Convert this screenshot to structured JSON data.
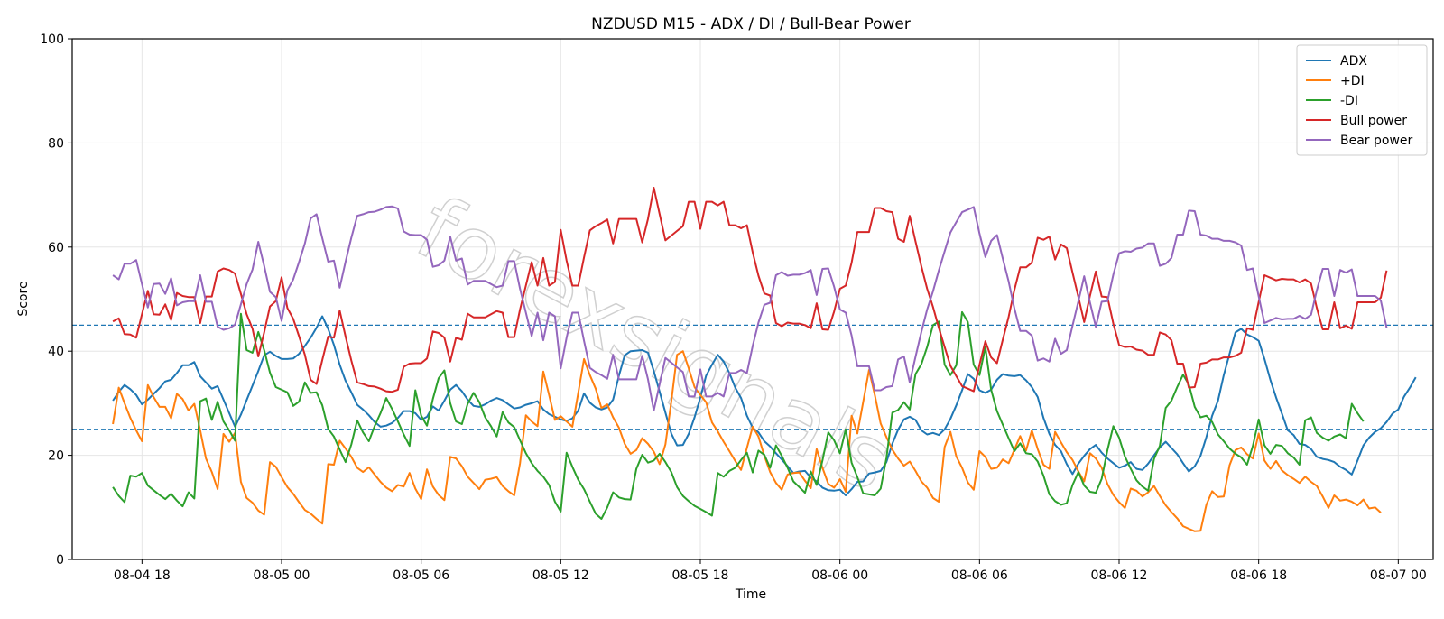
{
  "watermark": "forexsignals",
  "chart_data": {
    "type": "line",
    "title": "NZDUSD M15 - ADX / DI / Bull-Bear Power",
    "xlabel": "Time",
    "ylabel": "Score",
    "ylim": [
      0,
      100
    ],
    "yticks": [
      0,
      20,
      40,
      60,
      80,
      100
    ],
    "xticks": [
      "08-04 18",
      "08-05 00",
      "08-05 06",
      "08-05 12",
      "08-05 18",
      "08-06 00",
      "08-06 06",
      "08-06 12",
      "08-06 18",
      "08-07 00"
    ],
    "x_range": [
      "08-04 15:00",
      "08-07 01:30"
    ],
    "x_start": "08-04 16:45",
    "x_step_minutes": 15,
    "grid": true,
    "legend_position": "top-right",
    "hlines": [
      {
        "y": 45,
        "color": "#1f77b4",
        "style": "dashed"
      },
      {
        "y": 25,
        "color": "#1f77b4",
        "style": "dashed"
      }
    ],
    "series": [
      {
        "name": "ADX",
        "color": "#1f77b4",
        "values": [
          30.5,
          32.2,
          33.5,
          32.7,
          31.6,
          29.8,
          30.7,
          31.8,
          32.9,
          34.2,
          34.5,
          35.8,
          37.3,
          37.3,
          37.9,
          35.2,
          34.0,
          32.8,
          33.3,
          30.7,
          28.1,
          25.5,
          27.8,
          30.6,
          33.4,
          36.2,
          39.2,
          39.9,
          39.1,
          38.5,
          38.5,
          38.6,
          39.5,
          41.0,
          42.6,
          44.5,
          46.7,
          44.3,
          41.2,
          37.4,
          34.3,
          32.1,
          29.7,
          28.8,
          27.7,
          26.4,
          25.5,
          25.7,
          26.2,
          27.2,
          28.5,
          28.5,
          28.1,
          26.8,
          27.4,
          29.4,
          28.6,
          30.5,
          32.6,
          33.5,
          32.3,
          30.7,
          29.5,
          29.3,
          29.8,
          30.5,
          31.0,
          30.6,
          29.8,
          29.0,
          29.2,
          29.7,
          30.0,
          30.4,
          28.8,
          27.9,
          27.4,
          26.9,
          26.6,
          27.1,
          28.6,
          31.9,
          30.1,
          29.2,
          28.8,
          29.2,
          30.7,
          35.3,
          39.2,
          40.0,
          40.1,
          40.2,
          39.7,
          36.2,
          32.2,
          28.2,
          24.2,
          21.9,
          22.0,
          24.1,
          27.3,
          31.1,
          35.3,
          37.4,
          39.3,
          38.0,
          35.8,
          33.0,
          31.0,
          27.6,
          25.3,
          24.4,
          22.7,
          21.7,
          20.4,
          19.2,
          17.9,
          16.6,
          16.9,
          17.0,
          15.7,
          15.0,
          13.8,
          13.3,
          13.2,
          13.4,
          12.3,
          13.5,
          14.9,
          15.0,
          16.5,
          16.7,
          17.0,
          18.7,
          22.2,
          24.9,
          26.9,
          27.4,
          26.8,
          24.8,
          24.0,
          24.3,
          23.9,
          25.0,
          27.0,
          29.6,
          32.5,
          35.6,
          34.7,
          32.5,
          32.0,
          32.6,
          34.5,
          35.6,
          35.3,
          35.2,
          35.4,
          34.4,
          33.1,
          31.2,
          27.2,
          24.1,
          22.0,
          20.8,
          18.3,
          16.4,
          18.4,
          19.9,
          21.2,
          22.0,
          20.5,
          19.4,
          18.5,
          17.6,
          18.0,
          18.7,
          17.4,
          17.2,
          18.4,
          20.0,
          21.5,
          22.6,
          21.4,
          20.2,
          18.5,
          16.9,
          17.9,
          19.9,
          23.5,
          27.6,
          30.5,
          35.4,
          39.5,
          43.6,
          44.3,
          43.2,
          42.7,
          42.0,
          38.5,
          34.5,
          31.1,
          28.0,
          24.8,
          23.9,
          22.2,
          22.0,
          21.2,
          19.7,
          19.3,
          19.1,
          18.7,
          17.8,
          17.2,
          16.3,
          19.0,
          21.9,
          23.4,
          24.5,
          25.2,
          26.4,
          28.0,
          28.8,
          31.3,
          33.0,
          35.0
        ]
      },
      {
        "name": "+DI",
        "color": "#ff7f0e",
        "values": [
          26.0,
          33.0,
          30.0,
          27.2,
          24.8,
          22.7,
          33.5,
          31.2,
          29.3,
          29.3,
          27.1,
          31.8,
          30.8,
          28.6,
          29.9,
          24.8,
          19.4,
          16.8,
          13.5,
          24.1,
          22.6,
          24.3,
          14.9,
          11.8,
          10.9,
          9.4,
          8.6,
          18.7,
          17.8,
          15.8,
          13.9,
          12.6,
          11.0,
          9.5,
          8.8,
          7.8,
          6.9,
          18.3,
          18.2,
          22.8,
          21.3,
          19.7,
          17.6,
          16.8,
          17.7,
          16.3,
          14.9,
          13.8,
          13.1,
          14.3,
          14.0,
          16.6,
          13.6,
          11.6,
          17.3,
          14.0,
          12.4,
          11.4,
          19.7,
          19.4,
          17.9,
          15.9,
          14.7,
          13.5,
          15.3,
          15.5,
          15.8,
          14.1,
          13.1,
          12.3,
          18.5,
          27.7,
          26.5,
          25.6,
          36.1,
          31.6,
          26.8,
          27.5,
          26.5,
          25.5,
          32.0,
          38.5,
          35.4,
          32.8,
          29.1,
          29.8,
          27.3,
          25.3,
          22.2,
          20.3,
          21.0,
          23.3,
          22.2,
          20.7,
          18.3,
          22.1,
          30.3,
          39.3,
          40.0,
          36.7,
          33.1,
          31.6,
          30.2,
          26.3,
          24.6,
          22.6,
          20.8,
          18.9,
          17.2,
          21.4,
          25.5,
          23.6,
          19.9,
          16.8,
          14.7,
          13.4,
          16.3,
          16.6,
          16.7,
          15.1,
          13.7,
          21.2,
          17.6,
          14.5,
          13.8,
          15.4,
          13.0,
          27.6,
          24.2,
          30.2,
          36.4,
          31.6,
          26.1,
          23.5,
          21.1,
          19.4,
          18.0,
          18.8,
          17.0,
          15.0,
          13.8,
          11.8,
          11.1,
          21.6,
          24.5,
          19.8,
          17.6,
          14.8,
          13.4,
          20.8,
          19.7,
          17.4,
          17.6,
          19.2,
          18.5,
          21.1,
          23.7,
          20.9,
          24.8,
          21.2,
          18.2,
          17.4,
          24.5,
          22.5,
          20.6,
          19.1,
          16.9,
          15.0,
          20.4,
          19.4,
          17.6,
          14.5,
          12.4,
          11.0,
          9.9,
          13.6,
          13.2,
          12.1,
          12.9,
          14.1,
          12.2,
          10.4,
          9.1,
          7.9,
          6.4,
          5.9,
          5.4,
          5.5,
          10.5,
          13.1,
          12.0,
          12.1,
          18.1,
          21.0,
          21.5,
          20.2,
          19.4,
          24.2,
          19.0,
          17.4,
          18.9,
          17.1,
          16.2,
          15.5,
          14.7,
          15.9,
          14.9,
          14.1,
          12.1,
          9.9,
          12.3,
          11.3,
          11.5,
          11.1,
          10.4,
          11.5,
          9.8,
          10.0,
          9.0
        ]
      },
      {
        "name": "-DI",
        "color": "#2ca02c",
        "values": [
          13.9,
          12.2,
          11.0,
          16.1,
          15.9,
          16.6,
          14.2,
          13.3,
          12.4,
          11.6,
          12.6,
          11.3,
          10.2,
          12.9,
          11.7,
          30.4,
          30.9,
          26.8,
          30.3,
          26.5,
          24.8,
          22.8,
          47.2,
          40.2,
          39.7,
          43.7,
          40.2,
          35.9,
          33.1,
          32.6,
          32.1,
          29.5,
          30.3,
          34.0,
          32.0,
          32.1,
          29.6,
          25.1,
          23.6,
          21.1,
          18.7,
          22.1,
          26.7,
          24.4,
          22.7,
          25.6,
          28.1,
          31.0,
          28.9,
          26.5,
          24.0,
          21.8,
          32.5,
          27.6,
          25.7,
          30.8,
          34.8,
          36.3,
          30.0,
          26.5,
          26.0,
          29.9,
          32.0,
          30.2,
          27.3,
          25.6,
          23.6,
          28.3,
          26.3,
          25.4,
          22.9,
          20.4,
          18.5,
          17.0,
          15.9,
          14.3,
          11.1,
          9.2,
          20.5,
          17.8,
          15.3,
          13.5,
          11.1,
          8.8,
          7.8,
          10.0,
          12.9,
          11.9,
          11.6,
          11.5,
          17.4,
          20.1,
          18.6,
          19.0,
          20.3,
          18.7,
          16.8,
          13.9,
          12.2,
          11.2,
          10.3,
          9.7,
          9.1,
          8.4,
          16.6,
          15.9,
          17.0,
          17.6,
          19.1,
          20.5,
          16.7,
          20.9,
          20.1,
          17.6,
          21.9,
          19.9,
          17.6,
          15.0,
          13.9,
          12.8,
          16.9,
          14.3,
          19.0,
          24.4,
          22.9,
          20.4,
          25.0,
          18.6,
          15.8,
          12.7,
          12.5,
          12.3,
          13.6,
          19.5,
          28.2,
          28.7,
          30.2,
          28.8,
          35.6,
          37.5,
          40.8,
          45.0,
          45.7,
          37.4,
          35.4,
          37.3,
          47.5,
          45.6,
          37.4,
          35.4,
          40.8,
          32.6,
          28.5,
          25.9,
          23.3,
          20.8,
          22.3,
          20.4,
          20.2,
          18.8,
          16.1,
          12.5,
          11.2,
          10.5,
          10.8,
          14.3,
          16.8,
          14.2,
          13.0,
          12.8,
          15.5,
          21.0,
          25.6,
          23.4,
          19.8,
          17.4,
          15.2,
          14.0,
          13.2,
          19.3,
          21.8,
          29.1,
          30.5,
          33.1,
          35.5,
          33.6,
          29.3,
          27.3,
          27.6,
          26.4,
          24.0,
          22.7,
          21.3,
          20.3,
          19.6,
          18.2,
          21.8,
          26.9,
          21.9,
          20.3,
          22.0,
          21.8,
          20.4,
          19.6,
          18.2,
          26.7,
          27.3,
          24.3,
          23.4,
          22.8,
          23.6,
          24.0,
          23.3,
          29.9,
          28.1,
          26.5
        ]
      },
      {
        "name": "Bull power",
        "color": "#d62728",
        "values": [
          45.7,
          46.3,
          43.3,
          43.2,
          42.6,
          47.1,
          51.6,
          47.1,
          47.0,
          49.0,
          46.0,
          51.2,
          50.6,
          50.4,
          50.4,
          45.4,
          50.5,
          50.5,
          55.3,
          55.9,
          55.6,
          54.9,
          51.0,
          47.1,
          44.3,
          39.0,
          43.6,
          48.6,
          49.6,
          54.2,
          48.3,
          46.2,
          42.9,
          39.3,
          34.5,
          33.7,
          38.3,
          42.8,
          42.6,
          47.8,
          42.8,
          38.2,
          34.0,
          33.7,
          33.3,
          33.2,
          32.8,
          32.3,
          32.2,
          32.6,
          37.0,
          37.6,
          37.7,
          37.7,
          38.6,
          43.8,
          43.5,
          42.6,
          38.0,
          42.6,
          42.2,
          47.2,
          46.5,
          46.5,
          46.5,
          47.1,
          47.7,
          47.4,
          42.7,
          42.7,
          48.0,
          52.6,
          57.1,
          52.6,
          57.9,
          52.6,
          53.3,
          63.3,
          57.4,
          52.6,
          52.6,
          58.0,
          63.2,
          64.0,
          64.6,
          65.3,
          60.7,
          65.4,
          65.4,
          65.4,
          65.4,
          60.9,
          65.4,
          71.4,
          66.3,
          61.3,
          62.2,
          63.1,
          64.0,
          68.7,
          68.7,
          63.5,
          68.7,
          68.7,
          68.0,
          68.7,
          64.2,
          64.2,
          63.6,
          64.2,
          59.0,
          54.5,
          51.1,
          50.7,
          45.4,
          44.8,
          45.5,
          45.3,
          45.3,
          45.0,
          44.4,
          49.2,
          44.2,
          44.1,
          47.6,
          52.0,
          52.6,
          57.0,
          62.9,
          62.9,
          62.9,
          67.5,
          67.5,
          66.9,
          66.7,
          61.6,
          61.0,
          66.0,
          61.1,
          56.3,
          52.0,
          48.5,
          44.5,
          40.8,
          37.2,
          35.2,
          33.3,
          32.8,
          32.3,
          37.4,
          41.9,
          38.8,
          37.7,
          42.2,
          46.6,
          51.8,
          56.1,
          56.1,
          57.0,
          61.8,
          61.4,
          62.0,
          57.6,
          60.5,
          59.8,
          55.1,
          50.4,
          45.6,
          50.7,
          55.3,
          50.5,
          50.4,
          45.3,
          41.2,
          40.8,
          40.9,
          40.3,
          40.1,
          39.3,
          39.3,
          43.6,
          43.2,
          42.1,
          37.6,
          37.6,
          33.0,
          33.1,
          37.6,
          37.8,
          38.4,
          38.4,
          38.8,
          38.8,
          39.1,
          39.7,
          44.4,
          44.1,
          49.5,
          54.6,
          54.1,
          53.6,
          53.9,
          53.8,
          53.8,
          53.2,
          53.8,
          53.0,
          48.3,
          44.2,
          44.2,
          49.4,
          44.4,
          44.9,
          44.3,
          49.4,
          49.4,
          49.4,
          49.4,
          50.3,
          55.5
        ]
      },
      {
        "name": "Bear power",
        "color": "#9467bd",
        "values": [
          54.6,
          53.8,
          56.8,
          56.8,
          57.5,
          52.9,
          48.4,
          52.9,
          53.0,
          51.0,
          54.0,
          48.8,
          49.4,
          49.6,
          49.6,
          54.6,
          49.5,
          49.5,
          44.7,
          44.1,
          44.4,
          45.1,
          49.0,
          52.9,
          55.7,
          61.0,
          56.4,
          51.4,
          50.4,
          45.8,
          51.7,
          53.8,
          57.1,
          60.7,
          65.5,
          66.3,
          61.7,
          57.2,
          57.4,
          52.2,
          57.2,
          61.8,
          66.0,
          66.3,
          66.7,
          66.8,
          67.2,
          67.7,
          67.8,
          67.4,
          63.0,
          62.4,
          62.3,
          62.3,
          61.4,
          56.2,
          56.5,
          57.4,
          62.0,
          57.4,
          57.8,
          52.8,
          53.5,
          53.5,
          53.5,
          52.9,
          52.3,
          52.6,
          57.3,
          57.3,
          52.0,
          47.4,
          42.9,
          47.4,
          42.1,
          47.4,
          46.7,
          36.7,
          42.6,
          47.4,
          47.4,
          42.0,
          36.8,
          36.0,
          35.4,
          34.7,
          39.3,
          34.6,
          34.6,
          34.6,
          34.6,
          39.1,
          34.6,
          28.6,
          33.7,
          38.7,
          37.8,
          36.9,
          36.0,
          31.3,
          31.3,
          36.5,
          31.3,
          31.3,
          32.0,
          31.3,
          35.8,
          35.8,
          36.4,
          35.8,
          41.0,
          45.5,
          48.9,
          49.3,
          54.6,
          55.2,
          54.5,
          54.7,
          54.7,
          55.0,
          55.6,
          50.8,
          55.8,
          55.9,
          52.4,
          48.0,
          47.4,
          43.0,
          37.1,
          37.1,
          37.1,
          32.5,
          32.5,
          33.1,
          33.3,
          38.4,
          39.0,
          34.0,
          38.9,
          43.7,
          48.0,
          51.5,
          55.5,
          59.2,
          62.8,
          64.8,
          66.7,
          67.2,
          67.7,
          62.6,
          58.1,
          61.2,
          62.3,
          57.8,
          53.4,
          48.2,
          43.9,
          43.9,
          43.0,
          38.2,
          38.6,
          38.0,
          42.4,
          39.5,
          40.2,
          44.9,
          49.6,
          54.4,
          49.3,
          44.7,
          49.5,
          49.6,
          54.7,
          58.8,
          59.2,
          59.1,
          59.7,
          59.9,
          60.7,
          60.7,
          56.4,
          56.8,
          57.9,
          62.4,
          62.4,
          67.0,
          66.9,
          62.4,
          62.2,
          61.6,
          61.6,
          61.2,
          61.2,
          60.9,
          60.3,
          55.6,
          55.9,
          50.5,
          45.4,
          45.9,
          46.4,
          46.1,
          46.2,
          46.2,
          46.8,
          46.2,
          47.0,
          51.7,
          55.8,
          55.8,
          50.6,
          55.6,
          55.1,
          55.7,
          50.6,
          50.6,
          50.6,
          50.6,
          49.7,
          44.5
        ]
      }
    ]
  }
}
